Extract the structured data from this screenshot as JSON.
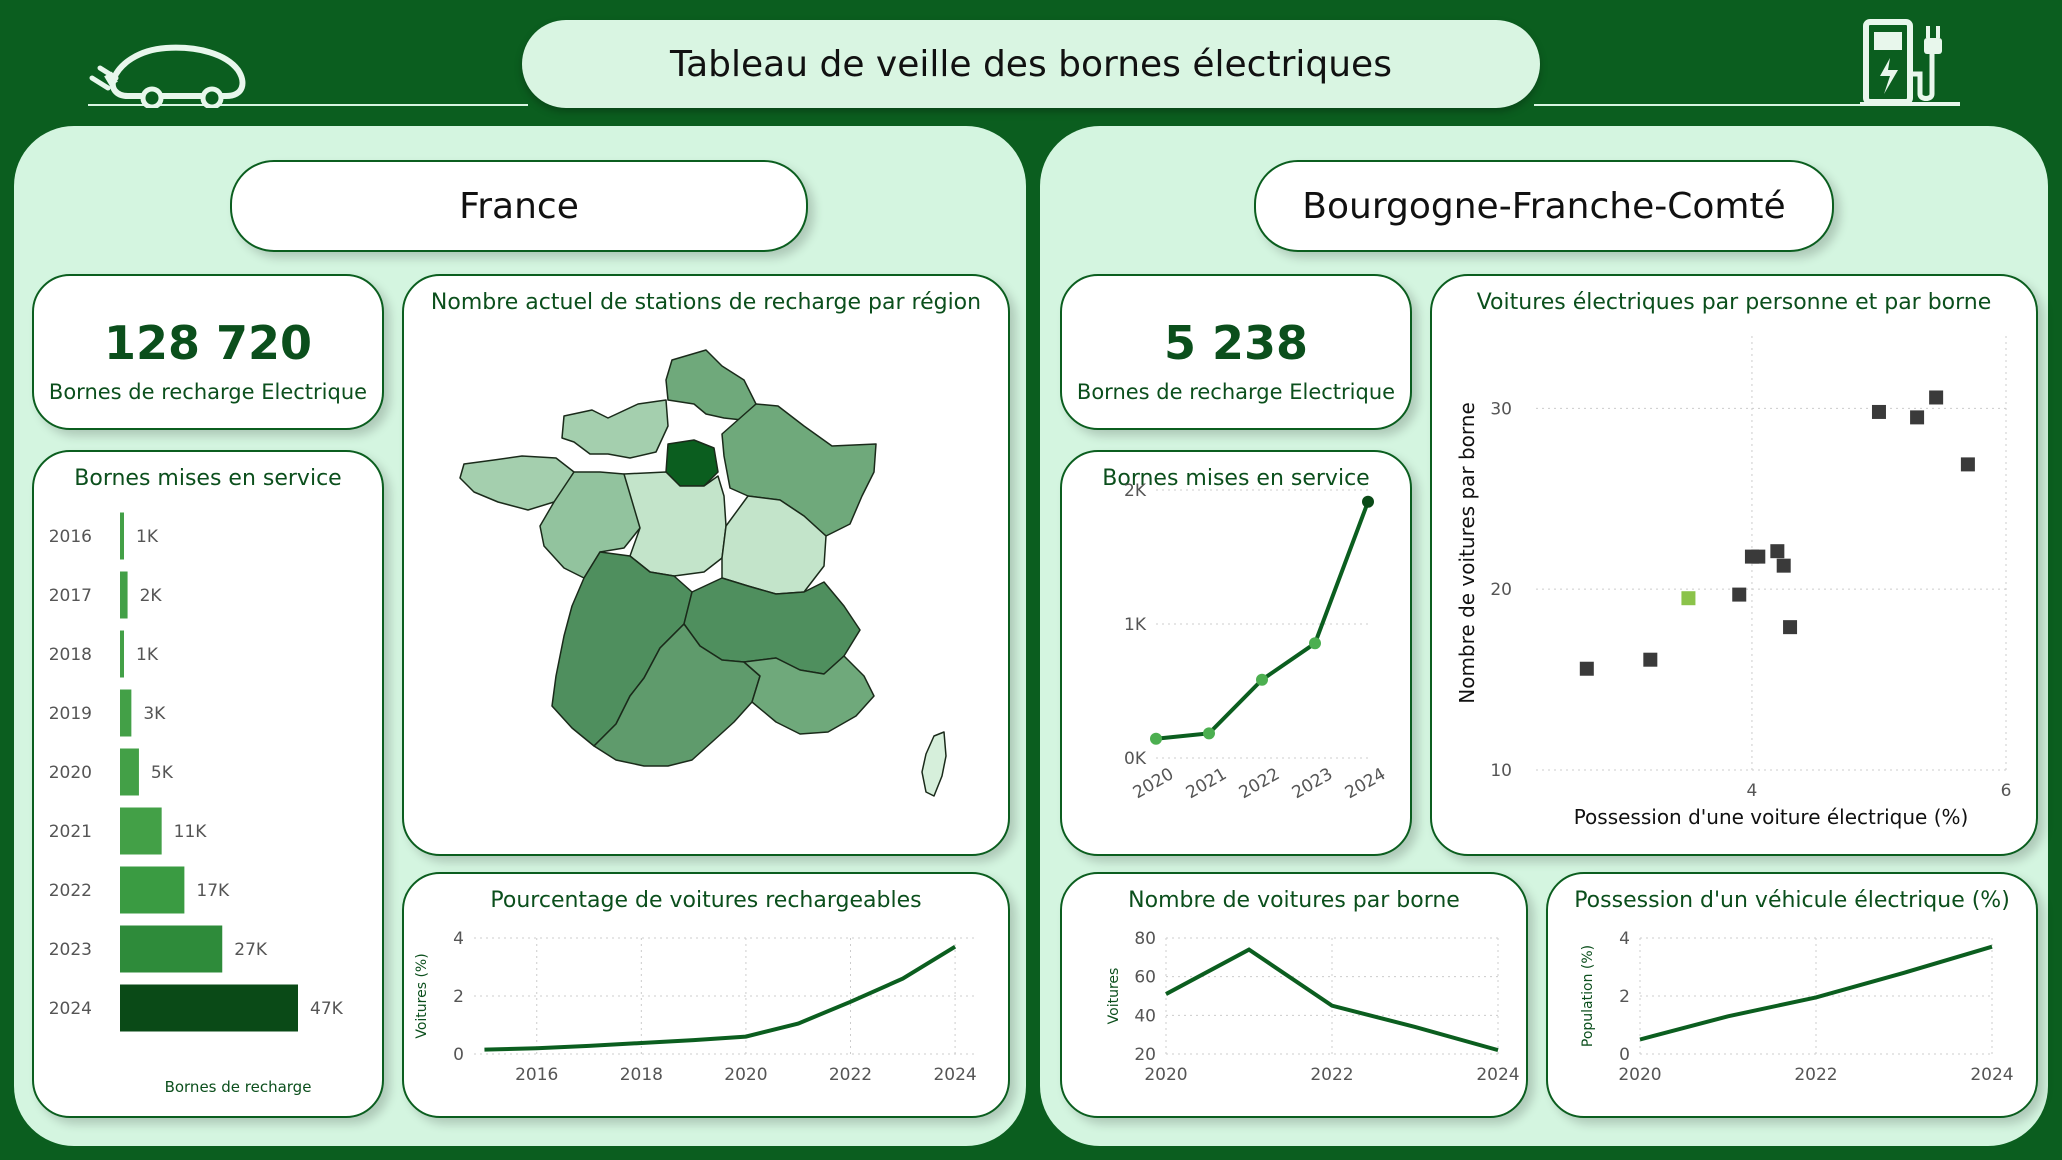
{
  "header": {
    "title": "Tableau de veille des bornes électriques",
    "car_icon": "electric-car-icon",
    "station_icon": "charging-station-icon"
  },
  "colors": {
    "background": "#0b5e1f",
    "panel": "#d4f5e0",
    "accent": "#0b5e1f",
    "light_accent": "#8bc34a"
  },
  "france": {
    "region_title": "France",
    "kpi": {
      "value": "128 720",
      "label": "Bornes de recharge Electrique"
    },
    "bar_card_title": "Bornes mises en service",
    "map_title": "Nombre actuel de stations de recharge par région",
    "line_card_title": "Pourcentage de voitures rechargeables"
  },
  "bfc": {
    "region_title": "Bourgogne-Franche-Comté",
    "kpi": {
      "value": "5 238",
      "label": "Bornes de recharge Electrique"
    },
    "line_card_title": "Bornes mises en service",
    "scatter_title": "Voitures électriques par personne et par borne",
    "cars_card_title": "Nombre de voitures par borne",
    "possession_card_title": "Possession d'un véhicule électrique (%)"
  },
  "chart_data": [
    {
      "id": "fr_bornes",
      "type": "bar",
      "orientation": "horizontal",
      "title": "Bornes mises en service",
      "xlabel": "Bornes de recharge",
      "categories": [
        "2016",
        "2017",
        "2018",
        "2019",
        "2020",
        "2021",
        "2022",
        "2023",
        "2024"
      ],
      "values": [
        1000,
        2000,
        1000,
        3000,
        5000,
        11000,
        17000,
        27000,
        47000
      ],
      "data_labels": [
        "1K",
        "2K",
        "1K",
        "3K",
        "5K",
        "11K",
        "17K",
        "27K",
        "47K"
      ],
      "colors": [
        "#43a047",
        "#43a047",
        "#43a047",
        "#43a047",
        "#43a047",
        "#43a047",
        "#3a9b42",
        "#2e8b3a",
        "#0a4a17"
      ]
    },
    {
      "id": "fr_map",
      "type": "choropleth",
      "title": "Nombre actuel de stations de recharge par région",
      "regions": [
        {
          "name": "Hauts-de-France",
          "level": 0.55
        },
        {
          "name": "Normandie",
          "level": 0.35
        },
        {
          "name": "Île-de-France",
          "level": 1.0
        },
        {
          "name": "Grand Est",
          "level": 0.6
        },
        {
          "name": "Bretagne",
          "level": 0.4
        },
        {
          "name": "Pays de la Loire",
          "level": 0.45
        },
        {
          "name": "Centre-Val de Loire",
          "level": 0.3
        },
        {
          "name": "Bourgogne-Franche-Comté",
          "level": 0.25
        },
        {
          "name": "Nouvelle-Aquitaine",
          "level": 0.8
        },
        {
          "name": "Auvergne-Rhône-Alpes",
          "level": 0.85
        },
        {
          "name": "Occitanie",
          "level": 0.7
        },
        {
          "name": "Provence-Alpes-Côte d'Azur",
          "level": 0.6
        },
        {
          "name": "Corse",
          "level": 0.1
        }
      ]
    },
    {
      "id": "fr_pct",
      "type": "line",
      "title": "Pourcentage de voitures rechargeables",
      "ylabel": "Voitures (%)",
      "x": [
        2015,
        2016,
        2017,
        2018,
        2019,
        2020,
        2021,
        2022,
        2023,
        2024
      ],
      "values": [
        0.15,
        0.2,
        0.28,
        0.38,
        0.48,
        0.6,
        1.05,
        1.8,
        2.6,
        3.7
      ],
      "x_ticks": [
        "2016",
        "2018",
        "2020",
        "2022",
        "2024"
      ],
      "y_ticks": [
        "0",
        "2",
        "4"
      ],
      "ylim": [
        0,
        4
      ],
      "xlim": [
        2014.8,
        2024.4
      ]
    },
    {
      "id": "bfc_bornes",
      "type": "line",
      "title": "Bornes mises en service",
      "x": [
        "2020",
        "2021",
        "2022",
        "2023",
        "2024"
      ],
      "values": [
        180,
        230,
        730,
        1070,
        2390
      ],
      "y_ticks": [
        "0K",
        "1K",
        "2K"
      ],
      "ylim": [
        0,
        2500
      ]
    },
    {
      "id": "bfc_scatter",
      "type": "scatter",
      "title": "Voitures électriques par personne et par borne",
      "xlabel": "Possession d'une voiture électrique (%)",
      "ylabel": "Nombre de voitures par borne",
      "x_ticks": [
        "4",
        "6"
      ],
      "y_ticks": [
        "10",
        "20",
        "30"
      ],
      "xlim": [
        2.3,
        6.0
      ],
      "ylim": [
        10,
        34
      ],
      "points": [
        {
          "x": 2.7,
          "y": 15.6
        },
        {
          "x": 3.2,
          "y": 16.1
        },
        {
          "x": 3.5,
          "y": 19.5,
          "highlight": true
        },
        {
          "x": 3.9,
          "y": 19.7
        },
        {
          "x": 4.0,
          "y": 21.8
        },
        {
          "x": 4.05,
          "y": 21.8
        },
        {
          "x": 4.2,
          "y": 22.1
        },
        {
          "x": 4.25,
          "y": 21.3
        },
        {
          "x": 4.3,
          "y": 17.9
        },
        {
          "x": 5.0,
          "y": 29.8
        },
        {
          "x": 5.3,
          "y": 29.5
        },
        {
          "x": 5.45,
          "y": 30.6
        },
        {
          "x": 5.7,
          "y": 26.9
        }
      ]
    },
    {
      "id": "bfc_cars",
      "type": "line",
      "title": "Nombre de voitures par borne",
      "ylabel": "Voitures",
      "x": [
        2020,
        2021,
        2022,
        2023,
        2024
      ],
      "values": [
        51,
        74,
        45,
        34,
        22
      ],
      "x_ticks": [
        "2020",
        "2022",
        "2024"
      ],
      "y_ticks": [
        "20",
        "40",
        "60",
        "80"
      ],
      "ylim": [
        20,
        80
      ]
    },
    {
      "id": "bfc_possession",
      "type": "line",
      "title": "Possession d'un véhicule électrique (%)",
      "ylabel": "Population (%)",
      "x": [
        2020,
        2021,
        2022,
        2023,
        2024
      ],
      "values": [
        0.5,
        1.3,
        1.95,
        2.8,
        3.7
      ],
      "x_ticks": [
        "2020",
        "2022",
        "2024"
      ],
      "y_ticks": [
        "0",
        "2",
        "4"
      ],
      "ylim": [
        0,
        4
      ]
    }
  ]
}
